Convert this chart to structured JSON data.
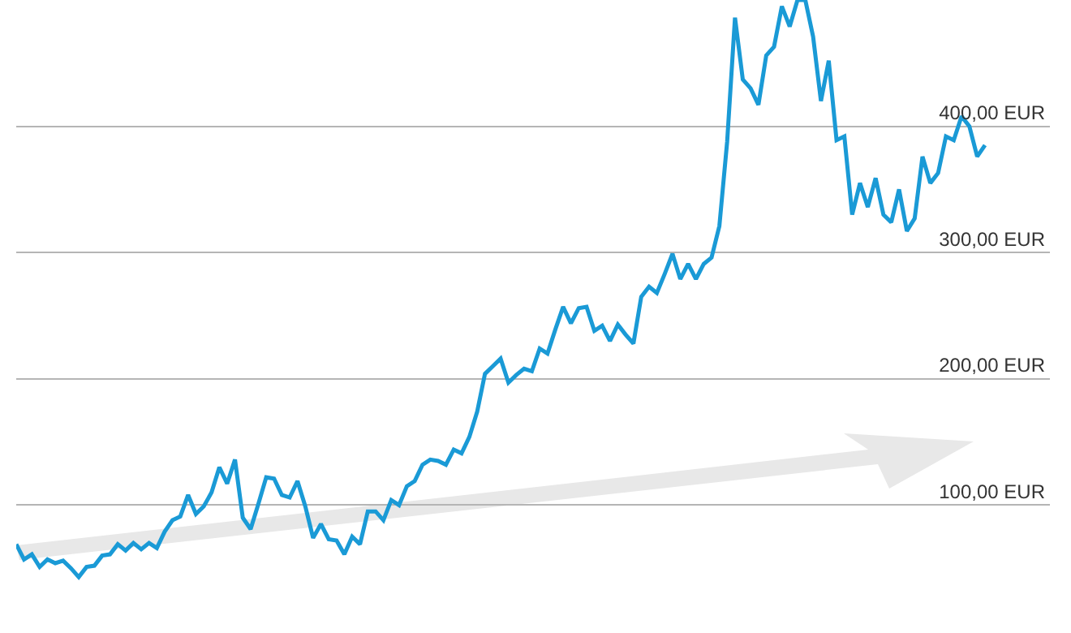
{
  "chart_data": {
    "type": "line",
    "categories": [
      null,
      null,
      null,
      null,
      null,
      null,
      null,
      null,
      null,
      null,
      null,
      null,
      null,
      null,
      null,
      null,
      null,
      null,
      null,
      null,
      null,
      null,
      null,
      null,
      null,
      null,
      null,
      null,
      null,
      null,
      null,
      null,
      null,
      null,
      null,
      null,
      null,
      null,
      null,
      null,
      null,
      null,
      null,
      null,
      null,
      null,
      null,
      null,
      null,
      null,
      null,
      null,
      null,
      null,
      null,
      null,
      null,
      null,
      null,
      null,
      null,
      null,
      null,
      null,
      null,
      null,
      null,
      null,
      null,
      null,
      null,
      null,
      null,
      null,
      null,
      null,
      null,
      null,
      null,
      null,
      null,
      null,
      null,
      null,
      null,
      null,
      null,
      null,
      null,
      null,
      null,
      null,
      null,
      null,
      null,
      null,
      null,
      null,
      null,
      null,
      null,
      null,
      null,
      null,
      null,
      null,
      null,
      null,
      null,
      null,
      null,
      null,
      null,
      null,
      null,
      null,
      null,
      null,
      null,
      null,
      null,
      null,
      null,
      null,
      null
    ],
    "series": [
      {
        "color": "#1a9ad6",
        "values": [
          69,
          57,
          61,
          51,
          57,
          54,
          56,
          50,
          43,
          51,
          52,
          60,
          61,
          69,
          64,
          70,
          65,
          70,
          66,
          79,
          88,
          91,
          108,
          93,
          99,
          110,
          130,
          117,
          136,
          90,
          81,
          101,
          122,
          121,
          108,
          106,
          119,
          99,
          74,
          85,
          73,
          72,
          61,
          75,
          69,
          95,
          95,
          88,
          104,
          100,
          115,
          119,
          132,
          136,
          135,
          132,
          144,
          141,
          154,
          174,
          204,
          210,
          216,
          197,
          203,
          208,
          206,
          224,
          220,
          239,
          257,
          244,
          256,
          257,
          238,
          242,
          230,
          243,
          235,
          228,
          265,
          273,
          268,
          283,
          299,
          279,
          291,
          279,
          291,
          296,
          321,
          388,
          486,
          437,
          430,
          417,
          456,
          463,
          495,
          479,
          500,
          500,
          471,
          420,
          452,
          389,
          392,
          330,
          355,
          336,
          359,
          330,
          324,
          350,
          317,
          327,
          376,
          355,
          363,
          392,
          389,
          408,
          400,
          376,
          385
        ]
      }
    ],
    "ylim": [
      0,
      500
    ],
    "yticks": [
      {
        "value": 100,
        "label": "100,00 EUR"
      },
      {
        "value": 200,
        "label": "200,00 EUR"
      },
      {
        "value": 300,
        "label": "300,00 EUR"
      },
      {
        "value": 400,
        "label": "400,00 EUR"
      },
      {
        "value": 500,
        "label": null
      }
    ],
    "grid": "y",
    "marker": "none",
    "line_style": "solid",
    "relative": false
  }
}
